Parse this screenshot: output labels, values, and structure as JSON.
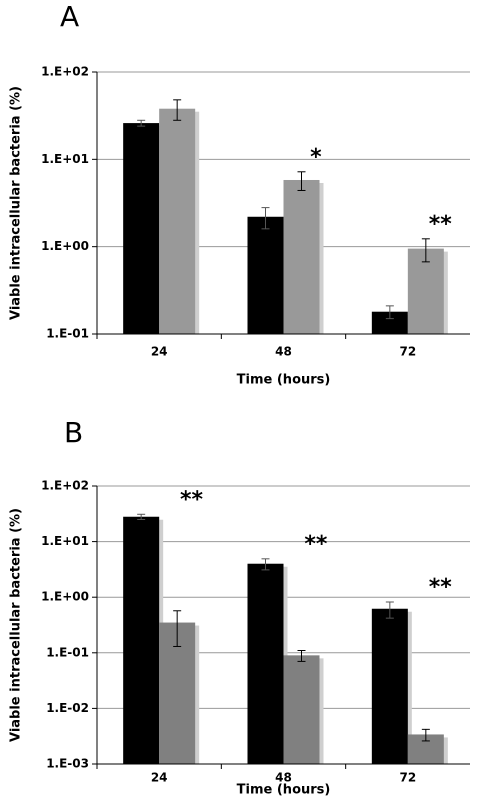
{
  "chart_data": [
    {
      "type": "bar",
      "panel": "A",
      "ylabel": "Viable intracellular bacteria (%)",
      "xlabel": "Time (hours)",
      "categories": [
        "24",
        "48",
        "72"
      ],
      "log_y": true,
      "grid": true,
      "ylim": [
        0.1,
        100
      ],
      "yticks": [
        {
          "value": 0.1,
          "label": "1.E-01"
        },
        {
          "value": 1,
          "label": "1.E+00"
        },
        {
          "value": 10,
          "label": "1.E+01"
        },
        {
          "value": 100,
          "label": "1.E+02"
        }
      ],
      "series": [
        {
          "color": "#000000",
          "values": [
            26,
            2.2,
            0.18
          ],
          "errors": [
            2,
            0.6,
            0.03
          ]
        },
        {
          "color": "#999999",
          "values": [
            38,
            5.8,
            0.95
          ],
          "errors": [
            10,
            1.4,
            0.28
          ]
        }
      ],
      "annotations": [
        null,
        "*",
        "**"
      ]
    },
    {
      "type": "bar",
      "panel": "B",
      "ylabel": "Viable intracellular bacteria (%)",
      "xlabel": "Time (hours)",
      "categories": [
        "24",
        "48",
        "72"
      ],
      "log_y": true,
      "grid": true,
      "ylim": [
        0.001,
        100
      ],
      "yticks": [
        {
          "value": 0.001,
          "label": "1.E-03"
        },
        {
          "value": 0.01,
          "label": "1.E-02"
        },
        {
          "value": 0.1,
          "label": "1.E-01"
        },
        {
          "value": 1,
          "label": "1.E+00"
        },
        {
          "value": 10,
          "label": "1.E+01"
        },
        {
          "value": 100,
          "label": "1.E+02"
        }
      ],
      "series": [
        {
          "color": "#000000",
          "values": [
            28,
            4.0,
            0.62
          ],
          "errors": [
            3,
            0.9,
            0.2
          ]
        },
        {
          "color": "#808080",
          "values": [
            0.35,
            0.09,
            0.0034
          ],
          "errors": [
            0.22,
            0.02,
            0.0008
          ]
        }
      ],
      "annotations": [
        "**",
        "**",
        "**"
      ]
    }
  ]
}
